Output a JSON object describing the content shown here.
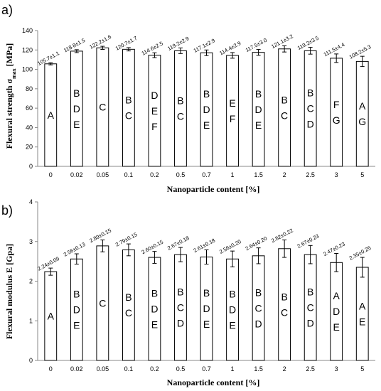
{
  "chart_data": [
    {
      "type": "bar",
      "panel_label": "a)",
      "ylabel": "Flexural strength σmax [MPa]",
      "ylabel_main": "Flexural strength σ",
      "ylabel_sub": "max",
      "ylabel_unit": " [MPa]",
      "xlabel": "Nanoparticle content [%]",
      "ylim": [
        0,
        140
      ],
      "yticks": [
        0,
        20,
        40,
        60,
        80,
        100,
        120,
        140
      ],
      "grid": false,
      "categories": [
        "0",
        "0.02",
        "0.05",
        "0.1",
        "0.2",
        "0.5",
        "0.7",
        "1",
        "1.5",
        "2",
        "2.5",
        "3",
        "5"
      ],
      "values": [
        105.7,
        118.8,
        122.2,
        120.7,
        114.6,
        119.2,
        117.1,
        114.4,
        117.5,
        121.1,
        119.2,
        111.5,
        108.2
      ],
      "errors": [
        1.1,
        1.5,
        1.6,
        1.7,
        2.5,
        2.9,
        2.9,
        2.9,
        3.0,
        3.2,
        3.5,
        4.4,
        5.3
      ],
      "data_labels": [
        "105.7±1.1",
        "118.8±1.5",
        "122.2±1.6",
        "120.7±1.7",
        "114.6±2.5",
        "119.2±2.9",
        "117.1±2.9",
        "114.4±2.9",
        "117.5±3.0",
        "121.1±3.2",
        "119.2±3.5",
        "111.5±4.4",
        "108.2±5.3"
      ],
      "groups": [
        [
          "A"
        ],
        [
          "B",
          "D",
          "E"
        ],
        [
          "C"
        ],
        [
          "B",
          "C"
        ],
        [
          "D",
          "E",
          "F"
        ],
        [
          "B",
          "C"
        ],
        [
          "B",
          "D",
          "E"
        ],
        [
          "E",
          "F"
        ],
        [
          "B",
          "D",
          "E"
        ],
        [
          "B",
          "C"
        ],
        [
          "B",
          "C",
          "D"
        ],
        [
          "F",
          "G"
        ],
        [
          "A",
          "G"
        ]
      ]
    },
    {
      "type": "bar",
      "panel_label": "b)",
      "ylabel": "Flexural modulus E [Gpa]",
      "xlabel": "Nanoparticle content [%]",
      "ylim": [
        0,
        4
      ],
      "yticks": [
        0,
        1,
        2,
        3,
        4
      ],
      "grid": false,
      "categories": [
        "0",
        "0.02",
        "0.05",
        "0.1",
        "0.2",
        "0.5",
        "0.7",
        "1",
        "1.5",
        "2",
        "2.5",
        "3",
        "5"
      ],
      "values": [
        2.24,
        2.56,
        2.89,
        2.79,
        2.6,
        2.67,
        2.61,
        2.56,
        2.64,
        2.82,
        2.67,
        2.47,
        2.35
      ],
      "errors": [
        0.09,
        0.13,
        0.15,
        0.15,
        0.15,
        0.18,
        0.18,
        0.2,
        0.2,
        0.22,
        0.23,
        0.23,
        0.25
      ],
      "data_labels": [
        "2.24±0.09",
        "2.56±0.13",
        "2.89±0.15",
        "2.79±0.15",
        "2.60±0.15",
        "2.67±0.18",
        "2.61±0.18",
        "2.56±0.20",
        "2.64±0.20",
        "2.82±0.22",
        "2.67±0.23",
        "2.47±0.23",
        "2.35±0.25"
      ],
      "groups": [
        [
          "A"
        ],
        [
          "B",
          "D",
          "E"
        ],
        [
          "C"
        ],
        [
          "B",
          "C"
        ],
        [
          "B",
          "D",
          "E"
        ],
        [
          "B",
          "C",
          "D"
        ],
        [
          "B",
          "D",
          "E"
        ],
        [
          "B",
          "D",
          "E"
        ],
        [
          "B",
          "C",
          "D"
        ],
        [
          "B",
          "C"
        ],
        [
          "B",
          "C",
          "D"
        ],
        [
          "A",
          "D",
          "E"
        ],
        [
          "A",
          "E"
        ]
      ]
    }
  ]
}
